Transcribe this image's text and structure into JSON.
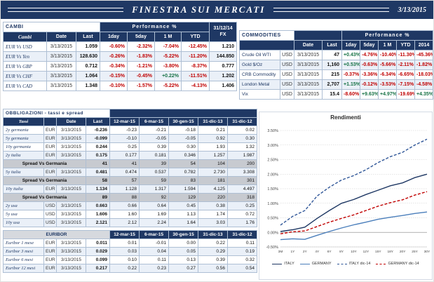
{
  "titlebar": {
    "title": "FINESTRA SUI MERCATI",
    "date": "3/13/2015"
  },
  "cambi": {
    "title": "CAMBI",
    "perf_label": "Performance %",
    "fx_label": "31/12/14 FX",
    "headers": [
      "Cambi",
      "Date",
      "Last",
      "1day",
      "5day",
      "1 M",
      "YTD"
    ],
    "rows": [
      {
        "name": "EUR Vs USD",
        "date": "3/13/2015",
        "last": "1.059",
        "perf": [
          "-0.60%",
          "-2.32%",
          "-7.04%",
          "-12.45%"
        ],
        "fx": "1.210"
      },
      {
        "name": "EUR Vs Yen",
        "date": "3/13/2015",
        "last": "128.630",
        "perf": [
          "-0.26%",
          "-1.83%",
          "-5.22%",
          "-11.20%"
        ],
        "fx": "144.850"
      },
      {
        "name": "EUR Vs GBP",
        "date": "3/13/2015",
        "last": "0.712",
        "perf": [
          "-0.34%",
          "-1.21%",
          "-3.80%",
          "-8.37%"
        ],
        "fx": "0.777"
      },
      {
        "name": "EUR Vs CHF",
        "date": "3/13/2015",
        "last": "1.064",
        "perf": [
          "-0.15%",
          "-0.45%",
          "+0.22%",
          "-11.51%"
        ],
        "fx": "1.202"
      },
      {
        "name": "EUR Vs CAD",
        "date": "3/13/2015",
        "last": "1.348",
        "perf": [
          "-0.10%",
          "-1.57%",
          "-5.22%",
          "-4.13%"
        ],
        "fx": "1.406"
      }
    ]
  },
  "commodities": {
    "title": "COMMODITIES",
    "perf_label": "Performance %",
    "headers": [
      "Date",
      "Last",
      "1day",
      "5day",
      "1 M",
      "YTD",
      "2014"
    ],
    "rows": [
      {
        "name": "Crude Oil WTI",
        "ccy": "USD",
        "date": "3/13/2015",
        "last": "47",
        "perf": [
          "+0.43%",
          "-4.76%",
          "-10.40%",
          "-11.30%",
          "-45.36%"
        ]
      },
      {
        "name": "Gold $/Oz",
        "ccy": "USD",
        "date": "3/13/2015",
        "last": "1,160",
        "perf": [
          "+0.53%",
          "-0.63%",
          "-5.66%",
          "-2.11%",
          "-1.82%"
        ]
      },
      {
        "name": "CRB Commodity",
        "ccy": "USD",
        "date": "3/13/2015",
        "last": "215",
        "perf": [
          "-0.37%",
          "-3.36%",
          "-6.34%",
          "-6.65%",
          "-18.03%"
        ]
      },
      {
        "name": "London Metal",
        "ccy": "USD",
        "date": "3/13/2015",
        "last": "2,707",
        "perf": [
          "+1.15%",
          "-0.12%",
          "-3.53%",
          "-7.15%",
          "-4.58%"
        ]
      },
      {
        "name": "Vix",
        "ccy": "USD",
        "date": "3/13/2015",
        "last": "15.4",
        "perf": [
          "-8.60%",
          "+9.63%",
          "+4.97%",
          "-19.69%",
          "+4.35%"
        ]
      }
    ]
  },
  "obbligazioni": {
    "title": "OBBLIGAZIONI - tassi e spread",
    "headers": [
      "Tassi",
      "",
      "Date",
      "Last",
      "12-mar-15",
      "6-mar-15",
      "30-gen-15",
      "31-dic-13",
      "31-dic-12"
    ],
    "rows": [
      {
        "name": "2y germania",
        "ccy": "EUR",
        "date": "3/13/2015",
        "values": [
          "-0.236",
          "-0.23",
          "-0.21",
          "-0.18",
          "0.21",
          "0.02"
        ]
      },
      {
        "name": "5y germania",
        "ccy": "EUR",
        "date": "3/13/2015",
        "values": [
          "-0.099",
          "-0.10",
          "-0.05",
          "-0.05",
          "0.92",
          "0.30"
        ]
      },
      {
        "name": "10y germania",
        "ccy": "EUR",
        "date": "3/13/2015",
        "values": [
          "0.244",
          "0.25",
          "0.39",
          "0.30",
          "1.93",
          "1.32"
        ]
      },
      {
        "name": "2y italia",
        "ccy": "EUR",
        "date": "3/13/2015",
        "values": [
          "0.175",
          "0.177",
          "0.181",
          "0.346",
          "1.257",
          "1.987"
        ]
      },
      {
        "spread": true,
        "name": "Spread Vs Germania",
        "values": [
          "41",
          "41",
          "39",
          "54",
          "104",
          "200"
        ]
      },
      {
        "name": "5y italia",
        "ccy": "EUR",
        "date": "3/13/2015",
        "values": [
          "0.481",
          "0.474",
          "0.537",
          "0.782",
          "2.730",
          "3.308"
        ]
      },
      {
        "spread": true,
        "name": "Spread Vs Germania",
        "values": [
          "58",
          "57",
          "59",
          "83",
          "181",
          "301"
        ]
      },
      {
        "name": "10y italia",
        "ccy": "EUR",
        "date": "3/13/2015",
        "values": [
          "1.134",
          "1.128",
          "1.317",
          "1.594",
          "4.125",
          "4.497"
        ]
      },
      {
        "spread": true,
        "name": "Spread Vs Germania",
        "values": [
          "89",
          "88",
          "92",
          "129",
          "220",
          "318"
        ]
      },
      {
        "name": "2y usa",
        "ccy": "USD",
        "date": "3/13/2015",
        "values": [
          "0.663",
          "0.66",
          "0.64",
          "0.45",
          "0.38",
          "0.25"
        ]
      },
      {
        "name": "5y usa",
        "ccy": "USD",
        "date": "3/13/2015",
        "values": [
          "1.606",
          "1.60",
          "1.69",
          "1.13",
          "1.74",
          "0.72"
        ]
      },
      {
        "name": "10y usa",
        "ccy": "USD",
        "date": "3/13/2015",
        "values": [
          "2.121",
          "2.12",
          "2.24",
          "1.64",
          "3.03",
          "1.76"
        ]
      }
    ]
  },
  "euribor": {
    "title": "EURIBOR",
    "headers": [
      "12-mar-15",
      "6-mar-15",
      "30-gen-15",
      "31-dic-13",
      "31-dic-12"
    ],
    "rows": [
      {
        "name": "Euribor 1 mese",
        "ccy": "EUR",
        "date": "3/13/2015",
        "values": [
          "0.011",
          "0.01",
          "-0.01",
          "0.00",
          "0.22",
          "0.11"
        ]
      },
      {
        "name": "Euribor 3 mesi",
        "ccy": "EUR",
        "date": "3/13/2015",
        "values": [
          "0.029",
          "0.03",
          "0.04",
          "0.05",
          "0.29",
          "0.19"
        ]
      },
      {
        "name": "Euribor 6 mesi",
        "ccy": "EUR",
        "date": "3/13/2015",
        "values": [
          "0.099",
          "0.10",
          "0.11",
          "0.13",
          "0.39",
          "0.32"
        ]
      },
      {
        "name": "Euribor 12 mesi",
        "ccy": "EUR",
        "date": "3/13/2015",
        "values": [
          "0.217",
          "0.22",
          "0.23",
          "0.27",
          "0.56",
          "0.54"
        ]
      }
    ]
  },
  "chart_data": {
    "type": "line",
    "title": "Rendimenti",
    "x": [
      "3M",
      "1Y",
      "2Y",
      "4Y",
      "6Y",
      "8Y",
      "10Y",
      "12Y",
      "15Y",
      "18Y",
      "20Y",
      "25Y",
      "30Y"
    ],
    "ylim": [
      -0.5,
      3.5
    ],
    "ytick_step": 0.5,
    "grid": true,
    "legend_position": "bottom",
    "series": [
      {
        "name": "ITALY",
        "style": "solid",
        "color": "#1F3864",
        "values": [
          0.03,
          0.09,
          0.18,
          0.48,
          0.75,
          1.0,
          1.13,
          1.3,
          1.45,
          1.6,
          1.7,
          1.88,
          2.0
        ]
      },
      {
        "name": "GERMANY",
        "style": "solid",
        "color": "#4A7EBB",
        "values": [
          -0.25,
          -0.22,
          -0.24,
          -0.1,
          0.03,
          0.15,
          0.26,
          0.35,
          0.45,
          0.52,
          0.58,
          0.65,
          0.7
        ]
      },
      {
        "name": "ITALY dic-14",
        "style": "dashed",
        "color": "#2E5597",
        "values": [
          0.25,
          0.55,
          0.75,
          1.25,
          1.55,
          1.8,
          1.95,
          2.15,
          2.4,
          2.6,
          2.75,
          3.0,
          3.2
        ]
      },
      {
        "name": "GERMANY dic-14",
        "style": "dashed",
        "color": "#C00000",
        "values": [
          -0.05,
          0.02,
          0.05,
          0.2,
          0.35,
          0.48,
          0.6,
          0.75,
          0.9,
          1.02,
          1.12,
          1.28,
          1.4
        ]
      }
    ]
  }
}
